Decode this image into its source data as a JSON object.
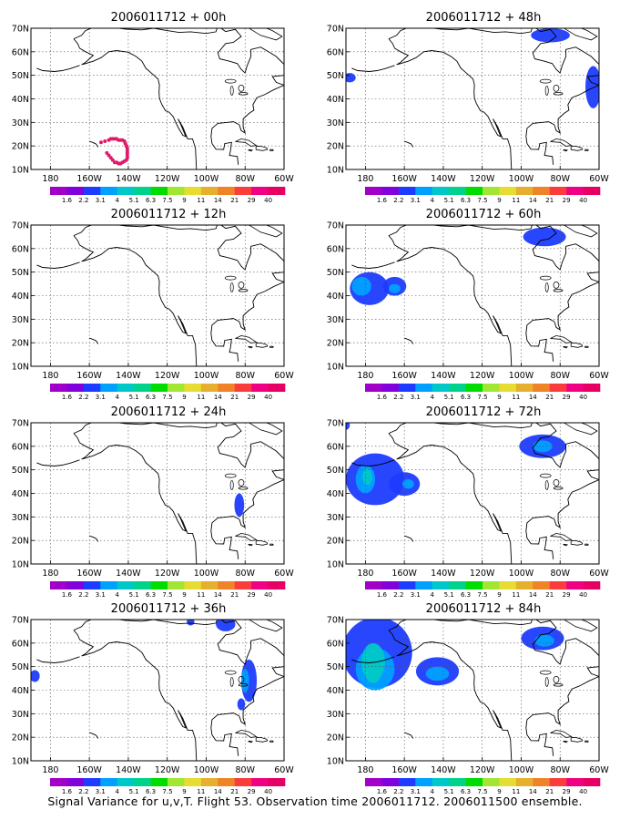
{
  "caption": "Signal Variance for u,v,T. Flight 53. Observation time 2006011712. 2006011500 ensemble.",
  "chart_data": {
    "type": "map-panels",
    "lat_ticks": [
      "10N",
      "20N",
      "30N",
      "40N",
      "50N",
      "60N",
      "70N"
    ],
    "lon_ticks": [
      "180",
      "160W",
      "140W",
      "120W",
      "100W",
      "80W",
      "60W"
    ],
    "lat_range": [
      10,
      70
    ],
    "lon_range": [
      -190,
      -60
    ],
    "grid": "dotted",
    "colorbar": {
      "labels": [
        "1.6",
        "2.2",
        "3.1",
        "4",
        "5.1",
        "6.3",
        "7.5",
        "9",
        "11",
        "14",
        "21",
        "29",
        "40"
      ],
      "colors": [
        "#a000c8",
        "#8200dc",
        "#1e3cff",
        "#00a0ff",
        "#00c8c8",
        "#00d28c",
        "#00dc00",
        "#a0e632",
        "#e6dc32",
        "#e6af2d",
        "#f08228",
        "#fa3c3c",
        "#f00082",
        "#e60064"
      ]
    },
    "panels": [
      {
        "title": "2006011712 + 00h",
        "dots": [
          [
            -151,
            17
          ],
          [
            -150,
            16
          ],
          [
            -149,
            15
          ],
          [
            -148,
            14
          ],
          [
            -147,
            13
          ],
          [
            -146,
            13
          ],
          [
            -145,
            12.5
          ],
          [
            -144,
            12.5
          ],
          [
            -143,
            13
          ],
          [
            -142,
            13.5
          ],
          [
            -141,
            14
          ],
          [
            -140.5,
            15
          ],
          [
            -140.5,
            16
          ],
          [
            -140.5,
            17
          ],
          [
            -140.5,
            18
          ],
          [
            -140.5,
            19
          ],
          [
            -141,
            20
          ],
          [
            -141.5,
            21
          ],
          [
            -142,
            22
          ],
          [
            -143,
            22.5
          ],
          [
            -144,
            22.5
          ],
          [
            -145,
            22.5
          ],
          [
            -146,
            23
          ],
          [
            -147,
            23
          ],
          [
            -148,
            23
          ],
          [
            -149,
            23
          ],
          [
            -150,
            22.5
          ],
          [
            -152,
            22
          ],
          [
            -154,
            21.5
          ]
        ],
        "blobs": []
      },
      {
        "title": "2006011712 + 12h",
        "dots": [],
        "blobs": []
      },
      {
        "title": "2006011712 + 24h",
        "dots": [],
        "blobs": [
          {
            "lon": -83,
            "lat": 35,
            "rx": 2.5,
            "ry": 5,
            "v": 2.2
          }
        ]
      },
      {
        "title": "2006011712 + 36h",
        "dots": [],
        "blobs": [
          {
            "lon": -188,
            "lat": 46,
            "rx": 2.5,
            "ry": 2.5,
            "v": 2.2
          },
          {
            "lon": -108,
            "lat": 69,
            "rx": 2,
            "ry": 1.5,
            "v": 2.2
          },
          {
            "lon": -90,
            "lat": 68,
            "rx": 5,
            "ry": 3,
            "v": 2.2
          },
          {
            "lon": -78,
            "lat": 44,
            "rx": 4,
            "ry": 9,
            "v": 2.2
          },
          {
            "lon": -80,
            "lat": 44,
            "rx": 2,
            "ry": 5,
            "v": 3.1
          },
          {
            "lon": -82,
            "lat": 34,
            "rx": 2,
            "ry": 2.5,
            "v": 2.2
          }
        ]
      },
      {
        "title": "2006011712 + 48h",
        "dots": [],
        "blobs": [
          {
            "lon": -188,
            "lat": 49,
            "rx": 3,
            "ry": 2,
            "v": 2.2
          },
          {
            "lon": -85,
            "lat": 67,
            "rx": 10,
            "ry": 3,
            "v": 2.2
          },
          {
            "lon": -63,
            "lat": 45,
            "rx": 4,
            "ry": 9,
            "v": 2.2
          }
        ]
      },
      {
        "title": "2006011712 + 60h",
        "dots": [],
        "blobs": [
          {
            "lon": -178,
            "lat": 43,
            "rx": 10,
            "ry": 7,
            "v": 2.2
          },
          {
            "lon": -165,
            "lat": 44,
            "rx": 6,
            "ry": 4,
            "v": 2.2
          },
          {
            "lon": -182,
            "lat": 44,
            "rx": 5,
            "ry": 4,
            "v": 3.1
          },
          {
            "lon": -165,
            "lat": 43,
            "rx": 3,
            "ry": 2,
            "v": 3.1
          },
          {
            "lon": -88,
            "lat": 65,
            "rx": 11,
            "ry": 4,
            "v": 2.2
          }
        ]
      },
      {
        "title": "2006011712 + 72h",
        "dots": [],
        "blobs": [
          {
            "lon": -175,
            "lat": 46,
            "rx": 15,
            "ry": 11,
            "v": 2.2
          },
          {
            "lon": -160,
            "lat": 44,
            "rx": 8,
            "ry": 5,
            "v": 2.2
          },
          {
            "lon": -180,
            "lat": 46,
            "rx": 5,
            "ry": 6,
            "v": 3.1
          },
          {
            "lon": -179,
            "lat": 47,
            "rx": 2.5,
            "ry": 3.5,
            "v": 4
          },
          {
            "lon": -158,
            "lat": 44,
            "rx": 3,
            "ry": 2,
            "v": 3.1
          },
          {
            "lon": -190,
            "lat": 69,
            "rx": 2,
            "ry": 2,
            "v": 2.2
          },
          {
            "lon": -89,
            "lat": 60,
            "rx": 12,
            "ry": 5,
            "v": 2.2
          },
          {
            "lon": -89,
            "lat": 60,
            "rx": 5,
            "ry": 2.5,
            "v": 3.1
          }
        ]
      },
      {
        "title": "2006011712 + 84h",
        "dots": [],
        "blobs": [
          {
            "lon": -174,
            "lat": 56,
            "rx": 18,
            "ry": 15,
            "v": 2.2
          },
          {
            "lon": -175,
            "lat": 49,
            "rx": 10,
            "ry": 9,
            "v": 3.1
          },
          {
            "lon": -176,
            "lat": 52,
            "rx": 6,
            "ry": 8,
            "v": 4
          },
          {
            "lon": -176,
            "lat": 47,
            "rx": 4,
            "ry": 4,
            "v": 4
          },
          {
            "lon": -143,
            "lat": 48,
            "rx": 11,
            "ry": 6,
            "v": 2.2
          },
          {
            "lon": -143,
            "lat": 47,
            "rx": 6,
            "ry": 3,
            "v": 3.1
          },
          {
            "lon": -89,
            "lat": 62,
            "rx": 11,
            "ry": 5,
            "v": 2.2
          },
          {
            "lon": -88,
            "lat": 61,
            "rx": 5,
            "ry": 2.5,
            "v": 3.1
          }
        ]
      }
    ]
  }
}
